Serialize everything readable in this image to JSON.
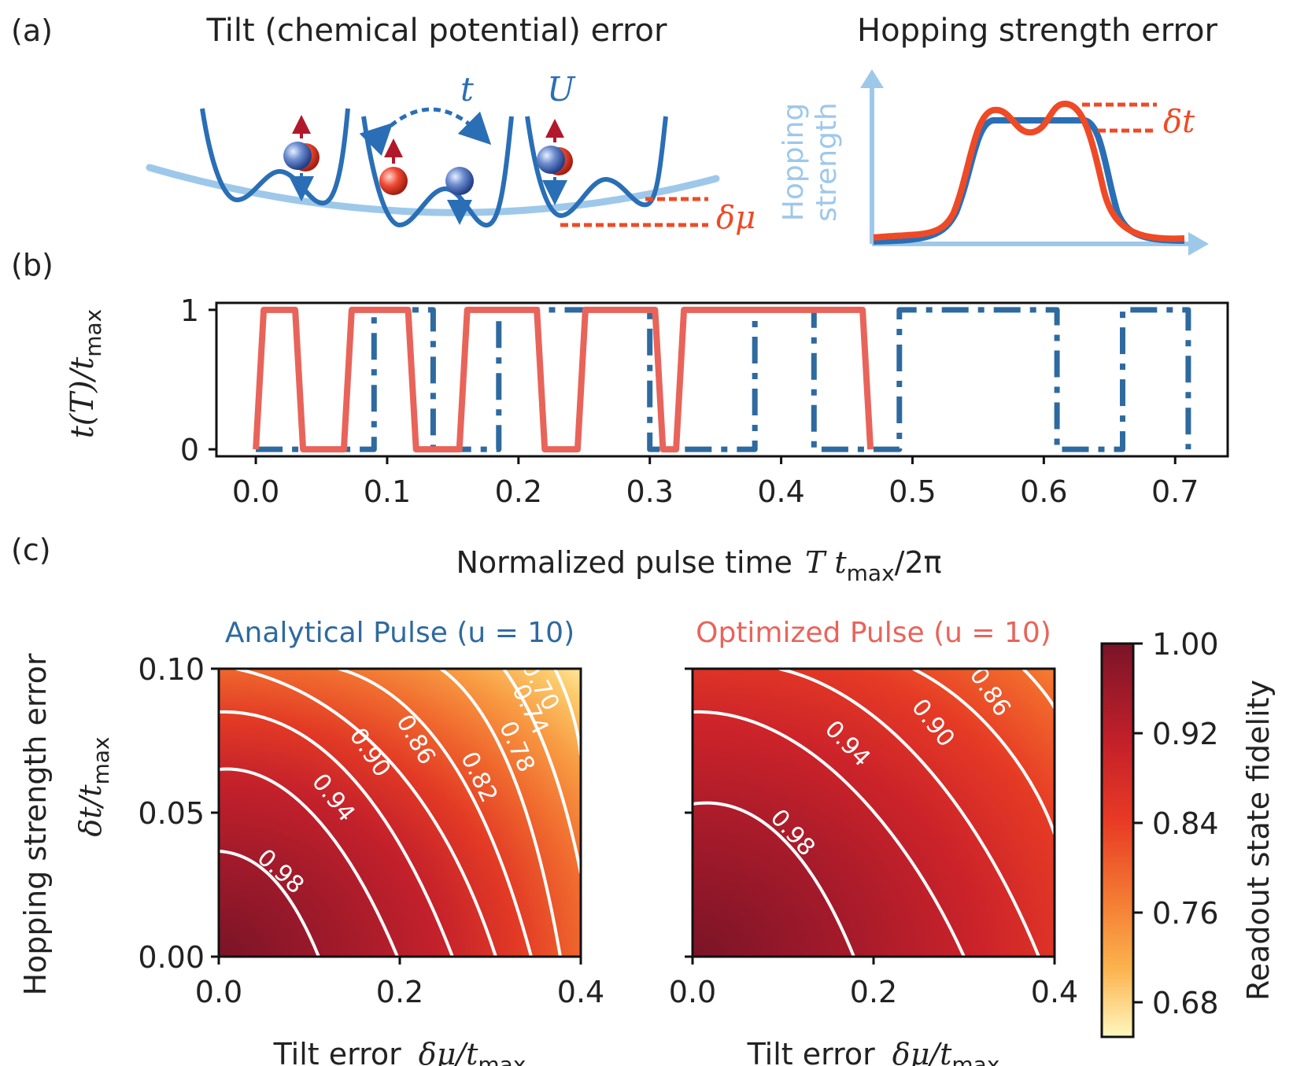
{
  "panel_a": {
    "label": "(a)",
    "tilt_title": "Tilt (chemical potential) error",
    "hop_title": "Hopping strength error",
    "t_symbol": "t",
    "U_symbol": "U",
    "delta_mu": "δμ",
    "delta_t": "δt",
    "hop_axis_line1": "Hopping",
    "hop_axis_line2": "strength",
    "colors": {
      "blue": "#2a6fb5",
      "light_blue": "#9ec8ea",
      "red": "#ef4a26"
    }
  },
  "panel_b": {
    "label": "(b)",
    "ylabel_main": "t(T)/t",
    "ylabel_sub": "max",
    "xlabel_main": "Normalized pulse time",
    "xlabel_math": "T t",
    "xlabel_sub": "max",
    "xlabel_tail": "/2π"
  },
  "panel_c": {
    "label": "(c)",
    "ylabel_outer": "Hopping strength error",
    "ylabel_math": "δt/t",
    "ylabel_sub": "max",
    "xlabel_text": "Tilt error",
    "xlabel_math": "δμ/t",
    "xlabel_sub": "max",
    "left_title": "Analytical Pulse (u = 10)",
    "right_title": "Optimized Pulse (u = 10)",
    "colorbar_label": "Readout state fidelity",
    "colorbar_ticks": [
      "1.00",
      "0.92",
      "0.84",
      "0.76",
      "0.68"
    ]
  },
  "chart_data": [
    {
      "type": "line",
      "panel": "b",
      "xlim": [
        -0.03,
        0.74
      ],
      "ylim": [
        -0.05,
        1.05
      ],
      "x_ticks": [
        "0.0",
        "0.1",
        "0.2",
        "0.3",
        "0.4",
        "0.5",
        "0.6",
        "0.7"
      ],
      "y_ticks": [
        "0",
        "1"
      ],
      "series": [
        {
          "style": "solid",
          "color": "#e8645a",
          "on_intervals": [
            [
              0.0,
              0.036
            ],
            [
              0.067,
              0.122
            ],
            [
              0.155,
              0.22
            ],
            [
              0.245,
              0.31
            ],
            [
              0.32,
              0.468
            ]
          ]
        },
        {
          "style": "dashdot",
          "color": "#2e6aa0",
          "on_intervals": [
            [
              0.09,
              0.135
            ],
            [
              0.185,
              0.3
            ],
            [
              0.38,
              0.425
            ],
            [
              0.49,
              0.61
            ],
            [
              0.66,
              0.71
            ]
          ]
        }
      ]
    },
    {
      "type": "heatmap",
      "panel": "c-left",
      "title": "Analytical Pulse (u = 10)",
      "xlim": [
        0.0,
        0.4
      ],
      "ylim": [
        0.0,
        0.1
      ],
      "x_ticks": [
        "0.0",
        "0.2",
        "0.4"
      ],
      "y_ticks": [
        "0.00",
        "0.05",
        "0.10"
      ],
      "contour_levels": [
        "0.98",
        "0.94",
        "0.90",
        "0.86",
        "0.82",
        "0.78",
        "0.74",
        "0.70"
      ]
    },
    {
      "type": "heatmap",
      "panel": "c-right",
      "title": "Optimized Pulse (u = 10)",
      "xlim": [
        0.0,
        0.4
      ],
      "ylim": [
        0.0,
        0.1
      ],
      "x_ticks": [
        "0.0",
        "0.2",
        "0.4"
      ],
      "contour_levels": [
        "0.98",
        "0.94",
        "0.90",
        "0.86"
      ]
    }
  ]
}
